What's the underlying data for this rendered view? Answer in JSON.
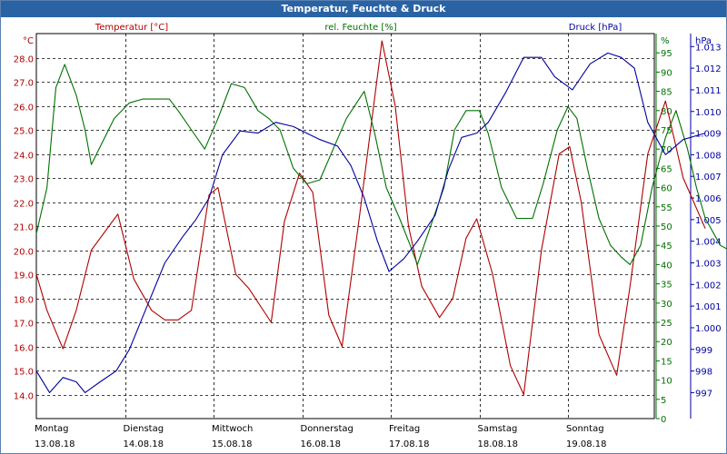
{
  "window": {
    "title": "Temperatur, Feuchte & Druck"
  },
  "chart_data": {
    "type": "line",
    "title": "Temperatur, Feuchte & Druck",
    "grid": true,
    "x_categories": [
      {
        "day": "Montag",
        "date": "13.08.18"
      },
      {
        "day": "Dienstag",
        "date": "14.08.18"
      },
      {
        "day": "Mittwoch",
        "date": "15.08.18"
      },
      {
        "day": "Donnerstag",
        "date": "16.08.18"
      },
      {
        "day": "Freitag",
        "date": "17.08.18"
      },
      {
        "day": "Samstag",
        "date": "18.08.18"
      },
      {
        "day": "Sonntag",
        "date": "19.08.18"
      }
    ],
    "x_range_days": [
      0,
      7
    ],
    "axes": {
      "left": {
        "title": "Temperatur [°C]",
        "unit": "°C",
        "range": [
          13.0,
          29.0
        ],
        "ticks": [
          "14.0",
          "15.0",
          "16.0",
          "17.0",
          "18.0",
          "19.0",
          "20.0",
          "21.0",
          "22.0",
          "23.0",
          "24.0",
          "25.0",
          "26.0",
          "27.0",
          "28.0"
        ],
        "color": "#b00000"
      },
      "right1": {
        "title": "rel. Feuchte [%]",
        "unit": "%",
        "range": [
          0,
          100
        ],
        "ticks": [
          "0",
          "5",
          "10",
          "15",
          "20",
          "25",
          "30",
          "35",
          "40",
          "45",
          "50",
          "55",
          "60",
          "65",
          "70",
          "75",
          "80",
          "85",
          "90",
          "95"
        ],
        "color": "#007000"
      },
      "right2": {
        "title": "Druck [hPa]",
        "unit": "hPa",
        "range": [
          995.8,
          1013.6
        ],
        "ticks": [
          "997",
          "998",
          "999",
          "1.000",
          "1.001",
          "1.002",
          "1.003",
          "1.004",
          "1.005",
          "1.006",
          "1.007",
          "1.008",
          "1.009",
          "1.010",
          "1.011",
          "1.012",
          "1.013"
        ],
        "color": "#0000a0"
      }
    },
    "series": [
      {
        "name": "Temperatur [°C]",
        "color": "#b00000",
        "axis": "left",
        "points": [
          [
            0,
            19.0
          ],
          [
            0.12,
            17.5
          ],
          [
            0.3,
            15.9
          ],
          [
            0.45,
            17.5
          ],
          [
            0.62,
            20.0
          ],
          [
            0.92,
            21.5
          ],
          [
            1.1,
            18.8
          ],
          [
            1.3,
            17.5
          ],
          [
            1.45,
            17.1
          ],
          [
            1.6,
            17.1
          ],
          [
            1.75,
            17.5
          ],
          [
            1.95,
            22.3
          ],
          [
            2.05,
            22.6
          ],
          [
            2.25,
            19.0
          ],
          [
            2.4,
            18.4
          ],
          [
            2.65,
            17.0
          ],
          [
            2.8,
            21.2
          ],
          [
            2.97,
            23.2
          ],
          [
            3.12,
            22.4
          ],
          [
            3.3,
            17.3
          ],
          [
            3.45,
            16.0
          ],
          [
            3.65,
            21.5
          ],
          [
            3.9,
            28.7
          ],
          [
            4.05,
            26.0
          ],
          [
            4.2,
            21.0
          ],
          [
            4.35,
            18.5
          ],
          [
            4.55,
            17.2
          ],
          [
            4.7,
            18.0
          ],
          [
            4.85,
            20.5
          ],
          [
            4.97,
            21.3
          ],
          [
            5.15,
            19.0
          ],
          [
            5.35,
            15.2
          ],
          [
            5.5,
            14.0
          ],
          [
            5.7,
            20.0
          ],
          [
            5.9,
            24.0
          ],
          [
            6.02,
            24.3
          ],
          [
            6.15,
            22.0
          ],
          [
            6.35,
            16.5
          ],
          [
            6.55,
            14.8
          ],
          [
            6.7,
            18.5
          ],
          [
            6.9,
            24.0
          ],
          [
            7.1,
            26.2
          ],
          [
            7.3,
            23.0
          ],
          [
            7.55,
            20.9
          ]
        ]
      },
      {
        "name": "rel. Feuchte [%]",
        "color": "#007000",
        "axis": "right1",
        "points": [
          [
            0,
            48
          ],
          [
            0.12,
            60
          ],
          [
            0.22,
            86
          ],
          [
            0.32,
            92
          ],
          [
            0.45,
            84
          ],
          [
            0.55,
            75
          ],
          [
            0.62,
            66
          ],
          [
            0.75,
            72
          ],
          [
            0.88,
            78
          ],
          [
            1.05,
            82
          ],
          [
            1.2,
            83
          ],
          [
            1.35,
            83
          ],
          [
            1.5,
            83
          ],
          [
            1.6,
            80
          ],
          [
            1.75,
            75
          ],
          [
            1.9,
            70
          ],
          [
            2.05,
            78
          ],
          [
            2.2,
            87
          ],
          [
            2.35,
            86
          ],
          [
            2.5,
            80
          ],
          [
            2.62,
            78
          ],
          [
            2.75,
            75
          ],
          [
            2.9,
            65
          ],
          [
            3.05,
            61
          ],
          [
            3.2,
            62
          ],
          [
            3.35,
            70
          ],
          [
            3.5,
            78
          ],
          [
            3.7,
            85
          ],
          [
            3.82,
            74
          ],
          [
            3.95,
            60
          ],
          [
            4.1,
            52
          ],
          [
            4.22,
            45
          ],
          [
            4.3,
            40
          ],
          [
            4.45,
            50
          ],
          [
            4.6,
            60
          ],
          [
            4.72,
            75
          ],
          [
            4.85,
            80
          ],
          [
            5.0,
            80
          ],
          [
            5.1,
            74
          ],
          [
            5.25,
            60
          ],
          [
            5.42,
            52
          ],
          [
            5.6,
            52
          ],
          [
            5.72,
            61
          ],
          [
            5.88,
            75
          ],
          [
            6.0,
            81
          ],
          [
            6.1,
            78
          ],
          [
            6.22,
            65
          ],
          [
            6.35,
            52
          ],
          [
            6.48,
            45
          ],
          [
            6.6,
            42
          ],
          [
            6.7,
            40
          ],
          [
            6.82,
            45
          ],
          [
            6.95,
            60
          ],
          [
            7.1,
            73
          ],
          [
            7.22,
            80
          ],
          [
            7.35,
            70
          ],
          [
            7.45,
            60
          ],
          [
            7.55,
            52
          ],
          [
            7.72,
            45
          ],
          [
            7.88,
            43
          ],
          [
            8.0,
            45
          ],
          [
            8.2,
            60
          ],
          [
            8.4,
            67
          ]
        ]
      },
      {
        "name": "Druck [hPa]",
        "color": "#0000a0",
        "axis": "right2",
        "points": [
          [
            0,
            998.0
          ],
          [
            0.15,
            997.0
          ],
          [
            0.3,
            997.7
          ],
          [
            0.45,
            997.5
          ],
          [
            0.55,
            997.0
          ],
          [
            0.72,
            997.5
          ],
          [
            0.9,
            998.0
          ],
          [
            1.05,
            999.0
          ],
          [
            1.25,
            1001.0
          ],
          [
            1.45,
            1003.0
          ],
          [
            1.65,
            1004.2
          ],
          [
            1.8,
            1005.0
          ],
          [
            1.95,
            1006.0
          ],
          [
            2.1,
            1008.0
          ],
          [
            2.3,
            1009.1
          ],
          [
            2.5,
            1009.0
          ],
          [
            2.7,
            1009.5
          ],
          [
            2.9,
            1009.3
          ],
          [
            3.05,
            1009.0
          ],
          [
            3.2,
            1008.7
          ],
          [
            3.4,
            1008.4
          ],
          [
            3.55,
            1007.5
          ],
          [
            3.7,
            1006.0
          ],
          [
            3.85,
            1004.0
          ],
          [
            3.98,
            1002.6
          ],
          [
            4.15,
            1003.2
          ],
          [
            4.3,
            1004.0
          ],
          [
            4.5,
            1005.2
          ],
          [
            4.65,
            1007.3
          ],
          [
            4.8,
            1008.8
          ],
          [
            4.97,
            1009.0
          ],
          [
            5.1,
            1009.5
          ],
          [
            5.3,
            1010.9
          ],
          [
            5.5,
            1012.5
          ],
          [
            5.7,
            1012.5
          ],
          [
            5.85,
            1011.6
          ],
          [
            6.05,
            1011.0
          ],
          [
            6.25,
            1012.2
          ],
          [
            6.45,
            1012.7
          ],
          [
            6.6,
            1012.5
          ],
          [
            6.75,
            1012.0
          ],
          [
            6.9,
            1009.5
          ],
          [
            7.1,
            1008.0
          ],
          [
            7.3,
            1008.7
          ],
          [
            7.55,
            1009.0
          ]
        ]
      }
    ]
  }
}
